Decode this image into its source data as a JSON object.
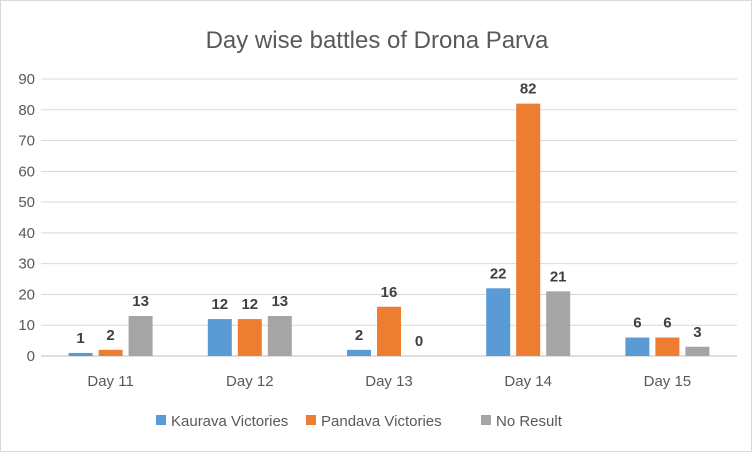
{
  "chart_data": {
    "type": "bar",
    "title": "Day wise battles of Drona Parva",
    "xlabel": "",
    "ylabel": "",
    "categories": [
      "Day 11",
      "Day 12",
      "Day 13",
      "Day 14",
      "Day 15"
    ],
    "series": [
      {
        "name": "Kaurava Victories",
        "color": "#5B9BD5",
        "values": [
          1,
          12,
          2,
          22,
          6
        ]
      },
      {
        "name": "Pandava Victories",
        "color": "#ED7D31",
        "values": [
          2,
          12,
          16,
          82,
          6
        ]
      },
      {
        "name": "No Result",
        "color": "#A5A5A5",
        "values": [
          13,
          13,
          0,
          21,
          3
        ]
      }
    ],
    "ylim": [
      0,
      90
    ],
    "yticks": [
      0,
      10,
      20,
      30,
      40,
      50,
      60,
      70,
      80,
      90
    ],
    "grid": true,
    "legend_position": "bottom",
    "data_labels": true
  }
}
